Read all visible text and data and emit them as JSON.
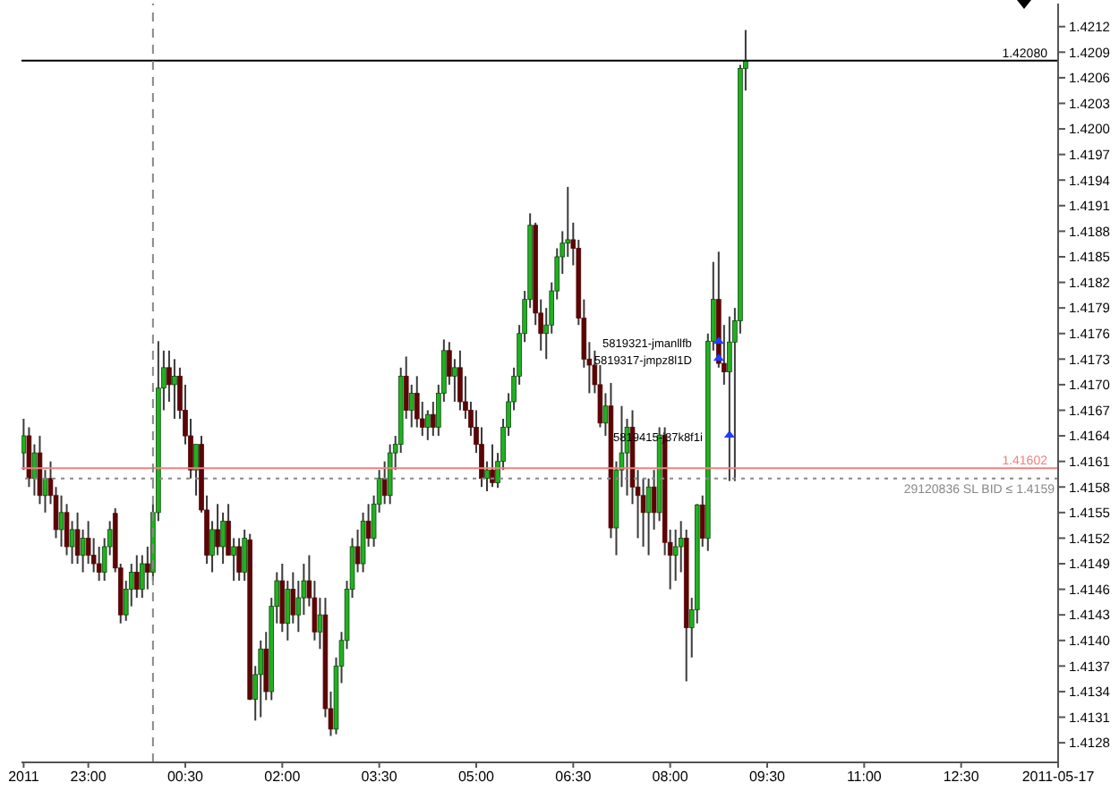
{
  "chart_data": {
    "type": "candlestick",
    "x": [
      "2011-05-16T22:00",
      "2011-05-16T22:05",
      "2011-05-16T22:10",
      "2011-05-16T22:15",
      "2011-05-16T22:20",
      "2011-05-16T22:25",
      "2011-05-16T22:30",
      "2011-05-16T22:35",
      "2011-05-16T22:40",
      "2011-05-16T22:45",
      "2011-05-16T22:50",
      "2011-05-16T22:55",
      "2011-05-16T23:00",
      "2011-05-16T23:05",
      "2011-05-16T23:10",
      "2011-05-16T23:15",
      "2011-05-16T23:20",
      "2011-05-16T23:25",
      "2011-05-16T23:30",
      "2011-05-16T23:35",
      "2011-05-16T23:40",
      "2011-05-16T23:45",
      "2011-05-16T23:50",
      "2011-05-16T23:55",
      "2011-05-17T00:00",
      "2011-05-17T00:05",
      "2011-05-17T00:10",
      "2011-05-17T00:15",
      "2011-05-17T00:20",
      "2011-05-17T00:25",
      "2011-05-17T00:30",
      "2011-05-17T00:35",
      "2011-05-17T00:40",
      "2011-05-17T00:45",
      "2011-05-17T00:50",
      "2011-05-17T00:55",
      "2011-05-17T01:00",
      "2011-05-17T01:05",
      "2011-05-17T01:10",
      "2011-05-17T01:15",
      "2011-05-17T01:20",
      "2011-05-17T01:25",
      "2011-05-17T01:30",
      "2011-05-17T01:35",
      "2011-05-17T01:40",
      "2011-05-17T01:45",
      "2011-05-17T01:50",
      "2011-05-17T01:55",
      "2011-05-17T02:00",
      "2011-05-17T02:05",
      "2011-05-17T02:10",
      "2011-05-17T02:15",
      "2011-05-17T02:20",
      "2011-05-17T02:25",
      "2011-05-17T02:30",
      "2011-05-17T02:35",
      "2011-05-17T02:40",
      "2011-05-17T02:45",
      "2011-05-17T02:50",
      "2011-05-17T02:55",
      "2011-05-17T03:00",
      "2011-05-17T03:05",
      "2011-05-17T03:10",
      "2011-05-17T03:15",
      "2011-05-17T03:20",
      "2011-05-17T03:25",
      "2011-05-17T03:30",
      "2011-05-17T03:35",
      "2011-05-17T03:40",
      "2011-05-17T03:45",
      "2011-05-17T03:50",
      "2011-05-17T03:55",
      "2011-05-17T04:00",
      "2011-05-17T04:05",
      "2011-05-17T04:10",
      "2011-05-17T04:15",
      "2011-05-17T04:20",
      "2011-05-17T04:25",
      "2011-05-17T04:30",
      "2011-05-17T04:35",
      "2011-05-17T04:40",
      "2011-05-17T04:45",
      "2011-05-17T04:50",
      "2011-05-17T04:55",
      "2011-05-17T05:00",
      "2011-05-17T05:05",
      "2011-05-17T05:10",
      "2011-05-17T05:15",
      "2011-05-17T05:20",
      "2011-05-17T05:25",
      "2011-05-17T05:30",
      "2011-05-17T05:35",
      "2011-05-17T05:40",
      "2011-05-17T05:45",
      "2011-05-17T05:50",
      "2011-05-17T05:55",
      "2011-05-17T06:00",
      "2011-05-17T06:05",
      "2011-05-17T06:10",
      "2011-05-17T06:15",
      "2011-05-17T06:20",
      "2011-05-17T06:25",
      "2011-05-17T06:30",
      "2011-05-17T06:35",
      "2011-05-17T06:40",
      "2011-05-17T06:45",
      "2011-05-17T06:50",
      "2011-05-17T06:55",
      "2011-05-17T07:00",
      "2011-05-17T07:05",
      "2011-05-17T07:10",
      "2011-05-17T07:15",
      "2011-05-17T07:20",
      "2011-05-17T07:25",
      "2011-05-17T07:30",
      "2011-05-17T07:35",
      "2011-05-17T07:40",
      "2011-05-17T07:45",
      "2011-05-17T07:50",
      "2011-05-17T07:55",
      "2011-05-17T08:00",
      "2011-05-17T08:05",
      "2011-05-17T08:10",
      "2011-05-17T08:15",
      "2011-05-17T08:20",
      "2011-05-17T08:25",
      "2011-05-17T08:30",
      "2011-05-17T08:35",
      "2011-05-17T08:40",
      "2011-05-17T08:45",
      "2011-05-17T08:50",
      "2011-05-17T08:55",
      "2011-05-17T09:00",
      "2011-05-17T09:05",
      "2011-05-17T09:10"
    ],
    "ohlc": [
      [
        1.4162,
        1.4166,
        1.416,
        1.4164
      ],
      [
        1.4164,
        1.4165,
        1.4158,
        1.4159
      ],
      [
        1.4159,
        1.4163,
        1.4157,
        1.4162
      ],
      [
        1.4162,
        1.4164,
        1.4156,
        1.4157
      ],
      [
        1.4157,
        1.416,
        1.4155,
        1.4159
      ],
      [
        1.4159,
        1.4161,
        1.4156,
        1.4157
      ],
      [
        1.4157,
        1.4158,
        1.4152,
        1.4153
      ],
      [
        1.4153,
        1.4157,
        1.4151,
        1.4155
      ],
      [
        1.4155,
        1.4156,
        1.415,
        1.4151
      ],
      [
        1.4151,
        1.4154,
        1.4149,
        1.4153
      ],
      [
        1.4153,
        1.4155,
        1.4149,
        1.415
      ],
      [
        1.415,
        1.4153,
        1.4148,
        1.4152
      ],
      [
        1.4152,
        1.4154,
        1.4149,
        1.415
      ],
      [
        1.415,
        1.4152,
        1.4148,
        1.4149
      ],
      [
        1.4149,
        1.4151,
        1.4147,
        1.4148
      ],
      [
        1.4148,
        1.4152,
        1.4147,
        1.4151
      ],
      [
        1.4151,
        1.4154,
        1.415,
        1.4153
      ],
      [
        1.41549,
        1.41555,
        1.4148,
        1.41485
      ],
      [
        1.41485,
        1.4149,
        1.4142,
        1.4143
      ],
      [
        1.4143,
        1.4147,
        1.41423,
        1.4146
      ],
      [
        1.4146,
        1.4149,
        1.4144,
        1.4148
      ],
      [
        1.4148,
        1.415,
        1.4145,
        1.4146
      ],
      [
        1.4146,
        1.415,
        1.4145,
        1.4149
      ],
      [
        1.4149,
        1.4151,
        1.4146,
        1.4148
      ],
      [
        1.4148,
        1.4156,
        1.4147,
        1.4155
      ],
      [
        1.4155,
        1.41751,
        1.4154,
        1.41696
      ],
      [
        1.41696,
        1.4174,
        1.4167,
        1.4172
      ],
      [
        1.4172,
        1.4174,
        1.4168,
        1.417
      ],
      [
        1.417,
        1.4173,
        1.4166,
        1.4171
      ],
      [
        1.4171,
        1.4172,
        1.4166,
        1.4167
      ],
      [
        1.4167,
        1.417,
        1.4163,
        1.4164
      ],
      [
        1.4164,
        1.4166,
        1.4159,
        1.416
      ],
      [
        1.416,
        1.4163,
        1.4157,
        1.4163
      ],
      [
        1.4163,
        1.4164,
        1.4155,
        1.41553
      ],
      [
        1.41553,
        1.4157,
        1.4149,
        1.415
      ],
      [
        1.415,
        1.4154,
        1.4148,
        1.4153
      ],
      [
        1.4153,
        1.4156,
        1.415,
        1.4151
      ],
      [
        1.4151,
        1.4155,
        1.4149,
        1.4154
      ],
      [
        1.4154,
        1.4156,
        1.415,
        1.415
      ],
      [
        1.415,
        1.4152,
        1.4147,
        1.4151
      ],
      [
        1.4151,
        1.4152,
        1.4147,
        1.4148
      ],
      [
        1.4148,
        1.4153,
        1.4147,
        1.4152
      ],
      [
        1.41518,
        1.41525,
        1.4133,
        1.41331
      ],
      [
        1.41331,
        1.4137,
        1.41306,
        1.4136
      ],
      [
        1.4136,
        1.414,
        1.4131,
        1.4139
      ],
      [
        1.4139,
        1.4141,
        1.4133,
        1.4134
      ],
      [
        1.4134,
        1.4145,
        1.4133,
        1.4144
      ],
      [
        1.4144,
        1.4148,
        1.4142,
        1.4147
      ],
      [
        1.4147,
        1.4149,
        1.4141,
        1.4142
      ],
      [
        1.4142,
        1.4147,
        1.414,
        1.4146
      ],
      [
        1.4146,
        1.4148,
        1.4142,
        1.4143
      ],
      [
        1.4143,
        1.4147,
        1.4141,
        1.4145
      ],
      [
        1.4145,
        1.4149,
        1.4143,
        1.4147
      ],
      [
        1.4147,
        1.415,
        1.4144,
        1.4145
      ],
      [
        1.4145,
        1.4147,
        1.414,
        1.4141
      ],
      [
        1.4141,
        1.4145,
        1.4139,
        1.4143
      ],
      [
        1.4143,
        1.4145,
        1.4131,
        1.4132
      ],
      [
        1.4132,
        1.4134,
        1.41288,
        1.41296
      ],
      [
        1.41296,
        1.4138,
        1.4129,
        1.4137
      ],
      [
        1.4137,
        1.4141,
        1.4135,
        1.414
      ],
      [
        1.414,
        1.4147,
        1.4139,
        1.4146
      ],
      [
        1.4146,
        1.4152,
        1.4145,
        1.4151
      ],
      [
        1.4151,
        1.4153,
        1.4148,
        1.4149
      ],
      [
        1.4149,
        1.4155,
        1.4148,
        1.4154
      ],
      [
        1.4154,
        1.4156,
        1.4151,
        1.4152
      ],
      [
        1.4152,
        1.4157,
        1.4151,
        1.4156
      ],
      [
        1.4156,
        1.416,
        1.4155,
        1.4159
      ],
      [
        1.4159,
        1.4161,
        1.4156,
        1.4157
      ],
      [
        1.4157,
        1.4163,
        1.4156,
        1.4162
      ],
      [
        1.4162,
        1.4164,
        1.416,
        1.4163
      ],
      [
        1.4163,
        1.4172,
        1.4162,
        1.4171
      ],
      [
        1.4171,
        1.41733,
        1.4166,
        1.4167
      ],
      [
        1.4167,
        1.417,
        1.4165,
        1.4169
      ],
      [
        1.4169,
        1.4171,
        1.4165,
        1.4166
      ],
      [
        1.4166,
        1.4168,
        1.4164,
        1.4165
      ],
      [
        1.4165,
        1.4167,
        1.41635,
        1.41665
      ],
      [
        1.41665,
        1.4168,
        1.4164,
        1.4165
      ],
      [
        1.4165,
        1.417,
        1.4164,
        1.4169
      ],
      [
        1.4169,
        1.41753,
        1.4168,
        1.4174
      ],
      [
        1.4174,
        1.4175,
        1.417,
        1.4171
      ],
      [
        1.4171,
        1.4173,
        1.4168,
        1.4172
      ],
      [
        1.4172,
        1.4174,
        1.4167,
        1.4168
      ],
      [
        1.4168,
        1.4171,
        1.4166,
        1.4167
      ],
      [
        1.4167,
        1.4168,
        1.4164,
        1.4165
      ],
      [
        1.4165,
        1.4167,
        1.4162,
        1.4163
      ],
      [
        1.4163,
        1.4165,
        1.4158,
        1.4159
      ],
      [
        1.4159,
        1.4161,
        1.41575,
        1.416
      ],
      [
        1.416,
        1.4163,
        1.4158,
        1.41585
      ],
      [
        1.41585,
        1.4162,
        1.41579,
        1.4161
      ],
      [
        1.4161,
        1.4166,
        1.416,
        1.4165
      ],
      [
        1.4165,
        1.4169,
        1.4164,
        1.4168
      ],
      [
        1.4168,
        1.4172,
        1.4167,
        1.4171
      ],
      [
        1.4171,
        1.4177,
        1.417,
        1.4176
      ],
      [
        1.4176,
        1.4181,
        1.4175,
        1.418
      ],
      [
        1.418,
        1.41901,
        1.4179,
        1.41887
      ],
      [
        1.41887,
        1.4189,
        1.4177,
        1.41784
      ],
      [
        1.41784,
        1.418,
        1.4174,
        1.4176
      ],
      [
        1.4176,
        1.4179,
        1.4173,
        1.4177
      ],
      [
        1.4177,
        1.4182,
        1.4176,
        1.4181
      ],
      [
        1.4181,
        1.4186,
        1.418,
        1.4185
      ],
      [
        1.4185,
        1.4188,
        1.4183,
        1.41866
      ],
      [
        1.41866,
        1.41932,
        1.4185,
        1.4187
      ],
      [
        1.4187,
        1.4189,
        1.4184,
        1.4186
      ],
      [
        1.4186,
        1.4187,
        1.4177,
        1.41778
      ],
      [
        1.41778,
        1.418,
        1.4172,
        1.4173
      ],
      [
        1.4173,
        1.4175,
        1.4169,
        1.41723
      ],
      [
        1.41723,
        1.4174,
        1.4169,
        1.417
      ],
      [
        1.417,
        1.41723,
        1.4165,
        1.41655
      ],
      [
        1.41655,
        1.4169,
        1.4164,
        1.41675
      ],
      [
        1.41675,
        1.41702,
        1.4152,
        1.41532
      ],
      [
        1.41532,
        1.4161,
        1.415,
        1.416
      ],
      [
        1.416,
        1.41675,
        1.4158,
        1.4162
      ],
      [
        1.4162,
        1.4166,
        1.4157,
        1.4165
      ],
      [
        1.4165,
        1.4167,
        1.4156,
        1.4158
      ],
      [
        1.4158,
        1.416,
        1.4152,
        1.4157
      ],
      [
        1.4157,
        1.4159,
        1.4151,
        1.4155
      ],
      [
        1.4155,
        1.4159,
        1.415,
        1.4158
      ],
      [
        1.4158,
        1.416,
        1.4153,
        1.4155
      ],
      [
        1.4155,
        1.4165,
        1.4154,
        1.41641
      ],
      [
        1.41641,
        1.4165,
        1.415,
        1.41515
      ],
      [
        1.41515,
        1.4153,
        1.4146,
        1.415
      ],
      [
        1.415,
        1.4153,
        1.4147,
        1.4151
      ],
      [
        1.4151,
        1.4154,
        1.4148,
        1.4152
      ],
      [
        1.4152,
        1.4153,
        1.41352,
        1.41415
      ],
      [
        1.41415,
        1.4145,
        1.4138,
        1.41436
      ],
      [
        1.41436,
        1.4156,
        1.4142,
        1.41559
      ],
      [
        1.41559,
        1.4157,
        1.4151,
        1.4152
      ],
      [
        1.4152,
        1.4176,
        1.41505,
        1.41751
      ],
      [
        1.41751,
        1.41844,
        1.4174,
        1.418
      ],
      [
        1.418,
        1.41856,
        1.4172,
        1.41725
      ],
      [
        1.41725,
        1.4177,
        1.417,
        1.41715
      ],
      [
        1.41715,
        1.4178,
        1.41587,
        1.4175
      ],
      [
        1.4175,
        1.4179,
        1.41587,
        1.41775
      ],
      [
        1.41775,
        1.42075,
        1.4176,
        1.42071
      ],
      [
        1.42071,
        1.42116,
        1.42045,
        1.4208
      ]
    ],
    "xlim": [
      "2011-05-16T21:58",
      "2011-05-17T14:00"
    ],
    "xticks": [
      {
        "value": "2011-05-16T22:00",
        "label": "2011"
      },
      {
        "value": "2011-05-16T23:00",
        "label": "23:00"
      },
      {
        "value": "2011-05-17T00:30",
        "label": "00:30"
      },
      {
        "value": "2011-05-17T02:00",
        "label": "02:00"
      },
      {
        "value": "2011-05-17T03:30",
        "label": "03:30"
      },
      {
        "value": "2011-05-17T05:00",
        "label": "05:00"
      },
      {
        "value": "2011-05-17T06:30",
        "label": "06:30"
      },
      {
        "value": "2011-05-17T08:00",
        "label": "08:00"
      },
      {
        "value": "2011-05-17T09:30",
        "label": "09:30"
      },
      {
        "value": "2011-05-17T11:00",
        "label": "11:00"
      },
      {
        "value": "2011-05-17T12:30",
        "label": "12:30"
      },
      {
        "value": "2011-05-17T14:00",
        "label": "2011-05-17"
      }
    ],
    "ylim": [
      1.41257,
      1.42147
    ],
    "yticks": [
      1.4128,
      1.4131,
      1.4134,
      1.4137,
      {
        "value": 1.414,
        "label": "1.4140"
      },
      1.4143,
      1.4146,
      1.4149,
      1.4152,
      1.4155,
      1.4158,
      1.4161,
      1.4164,
      1.4167,
      {
        "value": 1.417,
        "label": "1.4170"
      },
      1.4173,
      1.4176,
      1.4179,
      1.4182,
      1.4185,
      1.4188,
      1.4191,
      1.4194,
      1.4197,
      {
        "value": 1.42,
        "label": "1.4200"
      },
      1.4203,
      1.4206,
      1.4209,
      1.4212
    ],
    "ref_lines": [
      {
        "axis": "y",
        "value": 1.41602,
        "label": "1.41602",
        "color": "#f08080",
        "line_style": "solid"
      },
      {
        "axis": "y",
        "value": 1.4159,
        "label": "29120836 SL BID ≤ 1.4159",
        "color": "#888888",
        "line_style": "dotted"
      },
      {
        "axis": "y",
        "value": 1.4208,
        "label": "1.42080",
        "color": "#000000",
        "line_style": "solid"
      },
      {
        "axis": "x",
        "value": "2011-05-17T00:00",
        "color": "#888888",
        "line_style": "dashed"
      }
    ],
    "annotations": [
      {
        "text": "5819321-jmanllfb",
        "x": "2011-05-17T08:45",
        "y": 1.4175
      },
      {
        "text": "5819317-jmpz8l1D",
        "x": "2011-05-17T08:45",
        "y": 1.4173
      },
      {
        "text": "5819415-j37k8f1i",
        "x": "2011-05-17T08:55",
        "y": 1.4164
      }
    ],
    "grid": false,
    "legend": false
  }
}
